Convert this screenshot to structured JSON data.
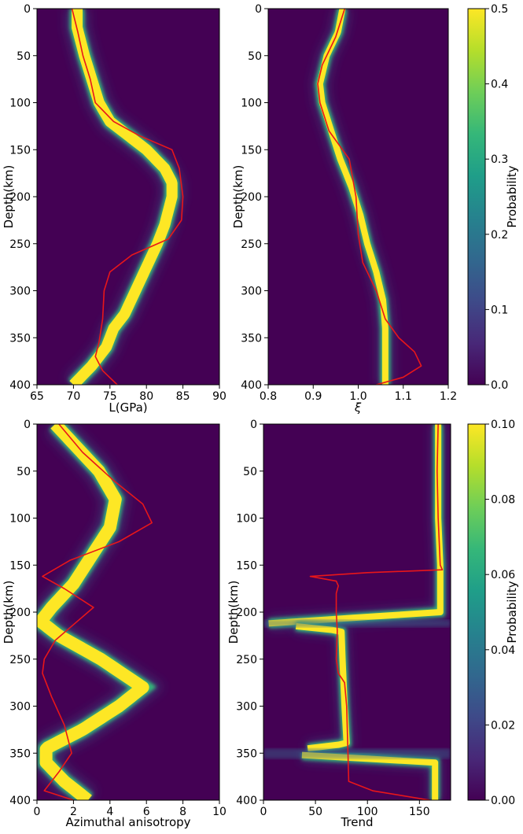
{
  "chart_data": [
    {
      "type": "heatmap",
      "xlabel": "L(GPa)",
      "ylabel": "Depth(km)",
      "xlim": [
        65,
        90
      ],
      "ylim": [
        400,
        0
      ],
      "xticks": [
        "65",
        "70",
        "75",
        "80",
        "85",
        "90"
      ],
      "yticks": [
        "0",
        "50",
        "100",
        "150",
        "200",
        "250",
        "300",
        "350",
        "400"
      ],
      "posterior_mode": {
        "depth": [
          0,
          20,
          50,
          75,
          100,
          120,
          150,
          170,
          185,
          200,
          215,
          230,
          250,
          275,
          300,
          325,
          340,
          360,
          380,
          400
        ],
        "value": [
          70.5,
          70.5,
          71.5,
          72.5,
          73.5,
          75.0,
          80.0,
          82.5,
          83.5,
          83.5,
          83.0,
          82.5,
          81.5,
          80.0,
          78.5,
          77.0,
          75.5,
          74.5,
          72.5,
          70.0
        ]
      },
      "reference_model": {
        "depth": [
          0,
          25,
          50,
          75,
          100,
          120,
          135,
          150,
          170,
          200,
          225,
          245,
          262,
          280,
          300,
          330,
          355,
          370,
          385,
          400
        ],
        "value": [
          69.8,
          70.6,
          71.3,
          72.3,
          73.0,
          75.5,
          79.0,
          83.5,
          84.5,
          85.0,
          84.8,
          83.0,
          78.0,
          75.0,
          74.2,
          74.0,
          73.5,
          73.0,
          74.0,
          76.0
        ]
      },
      "line_color": "#e8161a"
    },
    {
      "type": "heatmap",
      "xlabel": "ξ",
      "ylabel": "Depth(km)",
      "xlim": [
        0.8,
        1.2
      ],
      "ylim": [
        400,
        0
      ],
      "xticks": [
        "0.8",
        "0.9",
        "1.0",
        "1.1",
        "1.2"
      ],
      "yticks": [
        "0",
        "50",
        "100",
        "150",
        "200",
        "250",
        "300",
        "350",
        "400"
      ],
      "posterior_mode": {
        "depth": [
          0,
          25,
          50,
          80,
          100,
          130,
          160,
          190,
          220,
          250,
          280,
          310,
          340,
          370,
          400
        ],
        "value": [
          0.965,
          0.955,
          0.93,
          0.915,
          0.92,
          0.94,
          0.96,
          0.985,
          1.005,
          1.02,
          1.04,
          1.055,
          1.06,
          1.06,
          1.06
        ]
      },
      "reference_model": {
        "depth": [
          0,
          30,
          60,
          80,
          100,
          130,
          160,
          200,
          240,
          270,
          300,
          330,
          350,
          365,
          380,
          392,
          400
        ],
        "value": [
          0.97,
          0.95,
          0.92,
          0.91,
          0.915,
          0.935,
          0.98,
          0.995,
          1.0,
          1.01,
          1.04,
          1.06,
          1.09,
          1.125,
          1.14,
          1.1,
          1.04
        ]
      },
      "line_color": "#e8161a"
    },
    {
      "type": "heatmap",
      "xlabel": "Azimuthal anisotropy",
      "ylabel": "Depth(km)",
      "xlim": [
        0,
        10
      ],
      "ylim": [
        400,
        0
      ],
      "xticks": [
        "0",
        "2",
        "4",
        "6",
        "8",
        "10"
      ],
      "yticks": [
        "0",
        "50",
        "100",
        "150",
        "200",
        "250",
        "300",
        "350",
        "400"
      ],
      "posterior_mode": {
        "depth": [
          0,
          25,
          50,
          80,
          110,
          140,
          170,
          195,
          210,
          225,
          250,
          280,
          300,
          325,
          345,
          360,
          380,
          400
        ],
        "value": [
          1.0,
          2.2,
          3.4,
          4.3,
          4.0,
          3.0,
          2.0,
          0.8,
          0.2,
          1.2,
          3.5,
          5.8,
          4.5,
          2.5,
          0.5,
          0.5,
          1.5,
          2.8
        ]
      },
      "reference_model": {
        "depth": [
          0,
          30,
          60,
          85,
          105,
          125,
          145,
          162,
          175,
          195,
          210,
          230,
          250,
          265,
          290,
          320,
          350,
          370,
          390,
          400
        ],
        "value": [
          1.2,
          2.5,
          4.2,
          5.8,
          6.3,
          4.5,
          1.8,
          0.3,
          1.5,
          3.1,
          2.2,
          1.0,
          0.4,
          0.3,
          0.8,
          1.5,
          1.9,
          1.2,
          0.4,
          2.0
        ]
      },
      "line_color": "#e8161a"
    },
    {
      "type": "heatmap",
      "xlabel": "Trend",
      "ylabel": "Depth(km)",
      "xlim": [
        0,
        180
      ],
      "ylim": [
        400,
        0
      ],
      "xticks": [
        "0",
        "50",
        "100",
        "150"
      ],
      "yticks": [
        "0",
        "50",
        "100",
        "150",
        "200",
        "250",
        "300",
        "350",
        "400"
      ],
      "posterior_mode": {
        "depth": [
          0,
          50,
          100,
          150,
          200,
          212,
          220,
          250,
          300,
          340,
          350,
          360,
          400
        ],
        "value": [
          168,
          168,
          168,
          170,
          170,
          5,
          75,
          76,
          78,
          80,
          5,
          165,
          165
        ]
      },
      "reference_model": {
        "depth": [
          0,
          50,
          100,
          150,
          155,
          158,
          162,
          167,
          172,
          180,
          200,
          220,
          250,
          265,
          275,
          300,
          340,
          380,
          390,
          400
        ],
        "value": [
          168,
          167,
          168,
          170,
          172,
          100,
          45,
          70,
          72,
          70,
          70,
          71,
          70,
          72,
          78,
          80,
          81,
          82,
          105,
          160
        ]
      },
      "line_color": "#e8161a"
    }
  ],
  "colorbars": [
    {
      "label": "Probability",
      "ticks": [
        "0.0",
        "0.1",
        "0.2",
        "0.3",
        "0.4",
        "0.5"
      ]
    },
    {
      "label": "Probability",
      "ticks": [
        "0.00",
        "0.02",
        "0.04",
        "0.06",
        "0.08",
        "0.10"
      ]
    }
  ],
  "colors": {
    "background": "#440154",
    "colormap": [
      "#440154",
      "#482878",
      "#3e4a89",
      "#31688e",
      "#26828e",
      "#1f9e89",
      "#35b779",
      "#6ece58",
      "#b5de2b",
      "#fde725"
    ]
  }
}
